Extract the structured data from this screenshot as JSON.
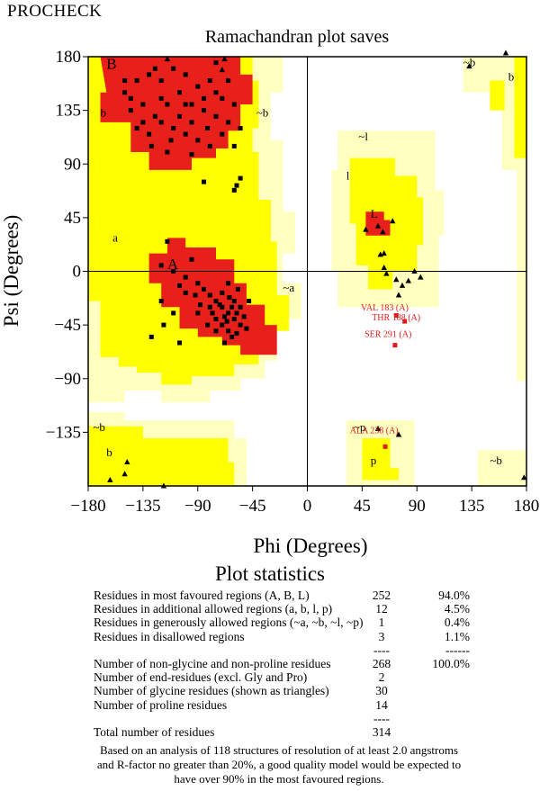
{
  "header": {
    "program": "PROCHECK"
  },
  "chart_data": {
    "type": "scatter",
    "title": "Ramachandran plot saves",
    "xlabel": "Phi (Degrees)",
    "ylabel": "Psi (Degrees)",
    "xlim": [
      -180,
      180
    ],
    "ylim": [
      -180,
      180
    ],
    "xticks": [
      "−180",
      "−135",
      "−90",
      "−45",
      "0",
      "45",
      "90",
      "135",
      "180"
    ],
    "yticks": [
      "180",
      "135",
      "90",
      "45",
      "0",
      "−45",
      "−90",
      "−135"
    ],
    "colors": {
      "core": "#e8201c",
      "allowed": "#ffff00",
      "generous": "#ffffc0",
      "disallowed": "#ffffff",
      "outline": "#000000",
      "label": "#e01b1b"
    },
    "region_labels": [
      {
        "text": "B",
        "phi": -165,
        "psi": 170,
        "size": "big"
      },
      {
        "text": "b",
        "phi": -170,
        "psi": 130,
        "size": "small"
      },
      {
        "text": "~b",
        "phi": -42,
        "psi": 130,
        "size": "small"
      },
      {
        "text": "a",
        "phi": -160,
        "psi": 25,
        "size": "small"
      },
      {
        "text": "A",
        "phi": -115,
        "psi": 2,
        "size": "big"
      },
      {
        "text": "~a",
        "phi": -20,
        "psi": -17,
        "size": "small"
      },
      {
        "text": "~l",
        "phi": 42,
        "psi": 110,
        "size": "small"
      },
      {
        "text": "l",
        "phi": 32,
        "psi": 77,
        "size": "small"
      },
      {
        "text": "L",
        "phi": 52,
        "psi": 45,
        "size": "small"
      },
      {
        "text": "~b",
        "phi": -176,
        "psi": -134,
        "size": "small"
      },
      {
        "text": "b",
        "phi": -165,
        "psi": -155,
        "size": "small"
      },
      {
        "text": "~p",
        "phi": 38,
        "psi": -134,
        "size": "small"
      },
      {
        "text": "p",
        "phi": 52,
        "psi": -162,
        "size": "small"
      },
      {
        "text": "~b",
        "phi": 128,
        "psi": 172,
        "size": "small"
      },
      {
        "text": "b",
        "phi": 165,
        "psi": 160,
        "size": "small"
      },
      {
        "text": "~b",
        "phi": 150,
        "psi": -162,
        "size": "small"
      }
    ],
    "labeled_outliers": [
      {
        "label": "VAL 183 (A)",
        "phi": 73,
        "psi": -37,
        "text_phi": 44,
        "text_psi": -33
      },
      {
        "label": "THR 188 (A)",
        "phi": 80,
        "psi": -42,
        "text_phi": 53,
        "text_psi": -41
      },
      {
        "label": "SER 291 (A)",
        "phi": 72,
        "psi": -62,
        "text_phi": 47,
        "text_psi": -55
      },
      {
        "label": "ALA 238 (A)",
        "phi": 64,
        "psi": -147,
        "text_phi": 35,
        "text_psi": -136
      }
    ],
    "glycine_points": [
      [
        -115,
        178
      ],
      [
        -68,
        178
      ],
      [
        -70,
        169
      ],
      [
        -150,
        -170
      ],
      [
        -162,
        -175
      ],
      [
        -148,
        -160
      ],
      [
        -118,
        -180
      ],
      [
        48,
        35
      ],
      [
        58,
        38
      ],
      [
        62,
        33
      ],
      [
        70,
        42
      ],
      [
        60,
        14
      ],
      [
        63,
        3
      ],
      [
        65,
        -2
      ],
      [
        73,
        -7
      ],
      [
        78,
        -12
      ],
      [
        83,
        -8
      ],
      [
        88,
        0
      ],
      [
        75,
        -20
      ],
      [
        93,
        -5
      ],
      [
        63,
        15
      ],
      [
        58,
        -132
      ],
      [
        75,
        -137
      ],
      [
        133,
        172
      ],
      [
        163,
        183
      ],
      [
        178,
        -173
      ]
    ],
    "nongly_points": [
      [
        -150,
        150
      ],
      [
        -140,
        160
      ],
      [
        -130,
        165
      ],
      [
        -120,
        160
      ],
      [
        -110,
        170
      ],
      [
        -100,
        165
      ],
      [
        -90,
        155
      ],
      [
        -80,
        160
      ],
      [
        -75,
        150
      ],
      [
        -70,
        145
      ],
      [
        -60,
        140
      ],
      [
        -145,
        135
      ],
      [
        -135,
        140
      ],
      [
        -125,
        130
      ],
      [
        -115,
        140
      ],
      [
        -105,
        130
      ],
      [
        -95,
        125
      ],
      [
        -85,
        135
      ],
      [
        -75,
        130
      ],
      [
        -65,
        125
      ],
      [
        -140,
        120
      ],
      [
        -130,
        115
      ],
      [
        -120,
        125
      ],
      [
        -110,
        120
      ],
      [
        -100,
        115
      ],
      [
        -90,
        110
      ],
      [
        -80,
        105
      ],
      [
        -115,
        100
      ],
      [
        -95,
        98
      ],
      [
        -150,
        160
      ],
      [
        -55,
        120
      ],
      [
        -60,
        105
      ],
      [
        -125,
        170
      ],
      [
        -105,
        150
      ],
      [
        -85,
        145
      ],
      [
        -95,
        140
      ],
      [
        -135,
        125
      ],
      [
        -120,
        145
      ],
      [
        -100,
        140
      ],
      [
        -70,
        115
      ],
      [
        -82,
        120
      ],
      [
        -112,
        110
      ],
      [
        -128,
        105
      ],
      [
        -145,
        145
      ],
      [
        -65,
        160
      ],
      [
        -75,
        175
      ],
      [
        -55,
        78
      ],
      [
        -58,
        72
      ],
      [
        -60,
        68
      ],
      [
        -85,
        75
      ],
      [
        -120,
        5
      ],
      [
        -110,
        0
      ],
      [
        -100,
        -5
      ],
      [
        -95,
        10
      ],
      [
        -90,
        -10
      ],
      [
        -85,
        -15
      ],
      [
        -80,
        -20
      ],
      [
        -75,
        -25
      ],
      [
        -70,
        -30
      ],
      [
        -65,
        -35
      ],
      [
        -60,
        -40
      ],
      [
        -55,
        -45
      ],
      [
        -65,
        -50
      ],
      [
        -70,
        -45
      ],
      [
        -75,
        -40
      ],
      [
        -80,
        -30
      ],
      [
        -62,
        -30
      ],
      [
        -58,
        -35
      ],
      [
        -68,
        -38
      ],
      [
        -72,
        -28
      ],
      [
        -60,
        -25
      ],
      [
        -55,
        -30
      ],
      [
        -78,
        -35
      ],
      [
        -66,
        -42
      ],
      [
        -64,
        -22
      ],
      [
        -70,
        -18
      ],
      [
        -88,
        -28
      ],
      [
        -92,
        -20
      ],
      [
        -100,
        -18
      ],
      [
        -105,
        -12
      ],
      [
        -62,
        -55
      ],
      [
        -58,
        -52
      ],
      [
        -68,
        -60
      ],
      [
        -52,
        -38
      ],
      [
        -50,
        -48
      ],
      [
        -75,
        -50
      ],
      [
        -82,
        -45
      ],
      [
        -90,
        -35
      ],
      [
        -110,
        -35
      ],
      [
        -120,
        -25
      ],
      [
        -115,
        25
      ],
      [
        -118,
        -45
      ],
      [
        -128,
        -55
      ],
      [
        -105,
        -60
      ],
      [
        -65,
        -10
      ],
      [
        -57,
        -15
      ],
      [
        -48,
        -25
      ]
    ]
  },
  "stats": {
    "title": "Plot statistics",
    "rows": [
      {
        "label": "Residues in most favoured regions (A, B, L)",
        "count": "252",
        "percent": "94.0%"
      },
      {
        "label": "Residues in additional allowed regions (a, b, l, p)",
        "count": "12",
        "percent": "4.5%"
      },
      {
        "label": "Residues in generously allowed regions (~a, ~b, ~l, ~p)",
        "count": "1",
        "percent": "0.4%"
      },
      {
        "label": "Residues in disallowed regions",
        "count": "3",
        "percent": "1.1%"
      },
      {
        "label": "",
        "count": "----",
        "percent": "------"
      },
      {
        "label": "Number of non-glycine and non-proline residues",
        "count": "268",
        "percent": "100.0%"
      },
      {
        "label": "Number of end-residues (excl. Gly and Pro)",
        "count": "2",
        "percent": ""
      },
      {
        "label": "Number of glycine residues (shown as triangles)",
        "count": "30",
        "percent": ""
      },
      {
        "label": "Number of proline residues",
        "count": "14",
        "percent": ""
      },
      {
        "label": "",
        "count": "----",
        "percent": ""
      },
      {
        "label": "Total number of residues",
        "count": "314",
        "percent": ""
      }
    ],
    "footnote": "Based on an analysis of 118 structures of resolution of at least 2.0 angstroms and R-factor no greater than 20%, a good quality model would be expected to have over 90% in the most favoured regions."
  }
}
